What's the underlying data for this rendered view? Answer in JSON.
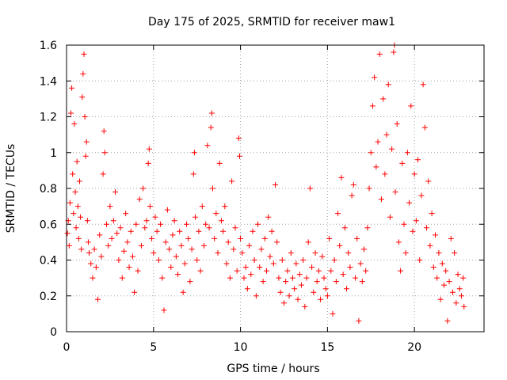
{
  "chart_data": {
    "type": "scatter",
    "title": "Day 175 of 2025, SRMTID for receiver maw1",
    "xlabel": "GPS time / hours",
    "ylabel": "SRMTID / TECUs",
    "xlim": [
      0,
      24
    ],
    "ylim": [
      0,
      1.6
    ],
    "x_ticks": [
      0,
      5,
      10,
      15,
      20
    ],
    "x_tick_labels": [
      "0",
      "5",
      "10",
      "15",
      "20"
    ],
    "y_ticks": [
      0,
      0.2,
      0.4,
      0.6,
      0.8,
      1.0,
      1.2,
      1.4,
      1.6
    ],
    "y_tick_labels": [
      "0",
      "0.2",
      "0.4",
      "0.6",
      "0.8",
      "1",
      "1.2",
      "1.4",
      "1.6"
    ],
    "grid": true,
    "marker": "plus",
    "color": "#ff0000",
    "series": [
      {
        "name": "SRMTID",
        "points": [
          [
            0.05,
            0.55
          ],
          [
            0.1,
            0.62
          ],
          [
            0.15,
            0.48
          ],
          [
            0.2,
            0.72
          ],
          [
            0.25,
            1.22
          ],
          [
            0.3,
            1.36
          ],
          [
            0.35,
            0.88
          ],
          [
            0.4,
            0.66
          ],
          [
            0.45,
            1.16
          ],
          [
            0.5,
            0.78
          ],
          [
            0.55,
            0.58
          ],
          [
            0.6,
            0.95
          ],
          [
            0.65,
            0.7
          ],
          [
            0.7,
            0.52
          ],
          [
            0.75,
            0.84
          ],
          [
            0.8,
            0.64
          ],
          [
            0.85,
            0.46
          ],
          [
            0.9,
            1.31
          ],
          [
            0.95,
            1.44
          ],
          [
            1.0,
            1.55
          ],
          [
            1.05,
            1.2
          ],
          [
            1.1,
            0.98
          ],
          [
            1.15,
            1.06
          ],
          [
            1.2,
            0.62
          ],
          [
            1.25,
            0.5
          ],
          [
            1.3,
            0.44
          ],
          [
            1.4,
            0.38
          ],
          [
            1.5,
            0.3
          ],
          [
            1.6,
            0.46
          ],
          [
            1.7,
            0.36
          ],
          [
            1.8,
            0.18
          ],
          [
            1.9,
            0.54
          ],
          [
            2.0,
            0.42
          ],
          [
            2.1,
            0.88
          ],
          [
            2.15,
            1.12
          ],
          [
            2.2,
            1.0
          ],
          [
            2.3,
            0.6
          ],
          [
            2.4,
            0.48
          ],
          [
            2.5,
            0.7
          ],
          [
            2.6,
            0.52
          ],
          [
            2.7,
            0.62
          ],
          [
            2.8,
            0.78
          ],
          [
            2.9,
            0.55
          ],
          [
            3.0,
            0.4
          ],
          [
            3.1,
            0.58
          ],
          [
            3.2,
            0.3
          ],
          [
            3.3,
            0.45
          ],
          [
            3.4,
            0.66
          ],
          [
            3.5,
            0.5
          ],
          [
            3.6,
            0.36
          ],
          [
            3.7,
            0.56
          ],
          [
            3.8,
            0.42
          ],
          [
            3.9,
            0.22
          ],
          [
            4.0,
            0.6
          ],
          [
            4.1,
            0.34
          ],
          [
            4.2,
            0.74
          ],
          [
            4.3,
            0.48
          ],
          [
            4.4,
            0.8
          ],
          [
            4.5,
            0.58
          ],
          [
            4.6,
            0.62
          ],
          [
            4.7,
            0.94
          ],
          [
            4.75,
            1.02
          ],
          [
            4.8,
            0.7
          ],
          [
            4.9,
            0.52
          ],
          [
            5.0,
            0.44
          ],
          [
            5.1,
            0.64
          ],
          [
            5.2,
            0.56
          ],
          [
            5.3,
            0.4
          ],
          [
            5.4,
            0.6
          ],
          [
            5.5,
            0.3
          ],
          [
            5.6,
            0.12
          ],
          [
            5.7,
            0.5
          ],
          [
            5.8,
            0.68
          ],
          [
            5.9,
            0.46
          ],
          [
            6.0,
            0.36
          ],
          [
            6.1,
            0.54
          ],
          [
            6.2,
            0.62
          ],
          [
            6.3,
            0.42
          ],
          [
            6.4,
            0.32
          ],
          [
            6.5,
            0.56
          ],
          [
            6.6,
            0.48
          ],
          [
            6.7,
            0.22
          ],
          [
            6.8,
            0.38
          ],
          [
            6.9,
            0.6
          ],
          [
            7.0,
            0.52
          ],
          [
            7.1,
            0.28
          ],
          [
            7.2,
            0.46
          ],
          [
            7.3,
            0.88
          ],
          [
            7.35,
            1.0
          ],
          [
            7.4,
            0.64
          ],
          [
            7.5,
            0.4
          ],
          [
            7.6,
            0.56
          ],
          [
            7.7,
            0.34
          ],
          [
            7.8,
            0.7
          ],
          [
            7.9,
            0.48
          ],
          [
            8.0,
            0.6
          ],
          [
            8.1,
            1.04
          ],
          [
            8.2,
            0.58
          ],
          [
            8.3,
            1.14
          ],
          [
            8.35,
            1.22
          ],
          [
            8.4,
            0.8
          ],
          [
            8.5,
            0.52
          ],
          [
            8.6,
            0.66
          ],
          [
            8.7,
            0.44
          ],
          [
            8.8,
            0.94
          ],
          [
            8.9,
            0.62
          ],
          [
            9.0,
            0.56
          ],
          [
            9.1,
            0.7
          ],
          [
            9.2,
            0.38
          ],
          [
            9.3,
            0.5
          ],
          [
            9.4,
            0.3
          ],
          [
            9.5,
            0.84
          ],
          [
            9.6,
            0.46
          ],
          [
            9.7,
            0.58
          ],
          [
            9.8,
            0.34
          ],
          [
            9.9,
            1.08
          ],
          [
            9.95,
            0.98
          ],
          [
            10.0,
            0.52
          ],
          [
            10.1,
            0.44
          ],
          [
            10.2,
            0.3
          ],
          [
            10.3,
            0.36
          ],
          [
            10.4,
            0.24
          ],
          [
            10.5,
            0.48
          ],
          [
            10.6,
            0.32
          ],
          [
            10.7,
            0.56
          ],
          [
            10.8,
            0.4
          ],
          [
            10.9,
            0.2
          ],
          [
            11.0,
            0.6
          ],
          [
            11.1,
            0.36
          ],
          [
            11.2,
            0.46
          ],
          [
            11.3,
            0.28
          ],
          [
            11.4,
            0.52
          ],
          [
            11.5,
            0.34
          ],
          [
            11.6,
            0.64
          ],
          [
            11.7,
            0.42
          ],
          [
            11.8,
            0.56
          ],
          [
            11.9,
            0.38
          ],
          [
            12.0,
            0.82
          ],
          [
            12.1,
            0.5
          ],
          [
            12.2,
            0.3
          ],
          [
            12.3,
            0.22
          ],
          [
            12.4,
            0.4
          ],
          [
            12.5,
            0.16
          ],
          [
            12.6,
            0.28
          ],
          [
            12.7,
            0.34
          ],
          [
            12.8,
            0.2
          ],
          [
            12.9,
            0.44
          ],
          [
            13.0,
            0.3
          ],
          [
            13.1,
            0.24
          ],
          [
            13.2,
            0.38
          ],
          [
            13.3,
            0.18
          ],
          [
            13.4,
            0.32
          ],
          [
            13.5,
            0.26
          ],
          [
            13.6,
            0.4
          ],
          [
            13.7,
            0.14
          ],
          [
            13.8,
            0.3
          ],
          [
            13.9,
            0.5
          ],
          [
            14.0,
            0.8
          ],
          [
            14.1,
            0.36
          ],
          [
            14.2,
            0.22
          ],
          [
            14.3,
            0.44
          ],
          [
            14.4,
            0.28
          ],
          [
            14.5,
            0.34
          ],
          [
            14.6,
            0.18
          ],
          [
            14.7,
            0.42
          ],
          [
            14.8,
            0.3
          ],
          [
            14.9,
            0.24
          ],
          [
            15.0,
            0.2
          ],
          [
            15.1,
            0.52
          ],
          [
            15.2,
            0.34
          ],
          [
            15.3,
            0.1
          ],
          [
            15.4,
            0.4
          ],
          [
            15.5,
            0.28
          ],
          [
            15.6,
            0.66
          ],
          [
            15.7,
            0.48
          ],
          [
            15.8,
            0.86
          ],
          [
            15.9,
            0.32
          ],
          [
            16.0,
            0.58
          ],
          [
            16.1,
            0.24
          ],
          [
            16.2,
            0.44
          ],
          [
            16.3,
            0.36
          ],
          [
            16.4,
            0.76
          ],
          [
            16.5,
            0.82
          ],
          [
            16.6,
            0.3
          ],
          [
            16.7,
            0.52
          ],
          [
            16.8,
            0.06
          ],
          [
            16.9,
            0.38
          ],
          [
            17.0,
            0.28
          ],
          [
            17.1,
            0.46
          ],
          [
            17.2,
            0.34
          ],
          [
            17.3,
            0.58
          ],
          [
            17.4,
            0.8
          ],
          [
            17.5,
            1.0
          ],
          [
            17.6,
            1.26
          ],
          [
            17.7,
            1.42
          ],
          [
            17.8,
            0.92
          ],
          [
            17.9,
            1.06
          ],
          [
            18.0,
            1.55
          ],
          [
            18.1,
            0.74
          ],
          [
            18.2,
            1.3
          ],
          [
            18.3,
            0.88
          ],
          [
            18.4,
            1.1
          ],
          [
            18.5,
            1.38
          ],
          [
            18.6,
            0.64
          ],
          [
            18.7,
            1.02
          ],
          [
            18.8,
            1.56
          ],
          [
            18.85,
            1.6
          ],
          [
            18.9,
            0.78
          ],
          [
            19.0,
            1.16
          ],
          [
            19.1,
            0.5
          ],
          [
            19.2,
            0.34
          ],
          [
            19.3,
            0.94
          ],
          [
            19.4,
            0.6
          ],
          [
            19.5,
            0.44
          ],
          [
            19.6,
            1.0
          ],
          [
            19.7,
            0.72
          ],
          [
            19.8,
            1.26
          ],
          [
            19.9,
            0.56
          ],
          [
            20.0,
            0.88
          ],
          [
            20.1,
            0.62
          ],
          [
            20.2,
            0.96
          ],
          [
            20.3,
            0.4
          ],
          [
            20.4,
            0.76
          ],
          [
            20.5,
            1.38
          ],
          [
            20.6,
            1.14
          ],
          [
            20.7,
            0.58
          ],
          [
            20.8,
            0.84
          ],
          [
            20.9,
            0.48
          ],
          [
            21.0,
            0.66
          ],
          [
            21.1,
            0.36
          ],
          [
            21.2,
            0.54
          ],
          [
            21.3,
            0.3
          ],
          [
            21.4,
            0.44
          ],
          [
            21.5,
            0.18
          ],
          [
            21.6,
            0.38
          ],
          [
            21.7,
            0.26
          ],
          [
            21.8,
            0.34
          ],
          [
            21.9,
            0.06
          ],
          [
            22.0,
            0.28
          ],
          [
            22.1,
            0.52
          ],
          [
            22.2,
            0.22
          ],
          [
            22.3,
            0.44
          ],
          [
            22.4,
            0.16
          ],
          [
            22.5,
            0.32
          ],
          [
            22.6,
            0.24
          ],
          [
            22.7,
            0.2
          ],
          [
            22.8,
            0.3
          ],
          [
            22.85,
            0.14
          ]
        ]
      }
    ]
  }
}
